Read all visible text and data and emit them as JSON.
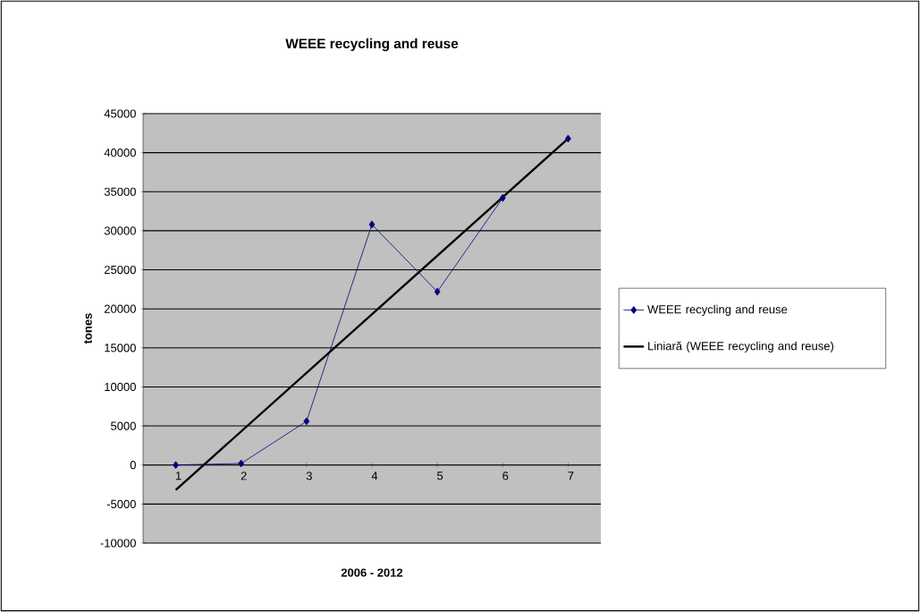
{
  "chart_data": {
    "type": "line",
    "title": "WEEE recycling and reuse",
    "xlabel": "2006 - 2012",
    "ylabel": "tones",
    "x": [
      1,
      2,
      3,
      4,
      5,
      6,
      7
    ],
    "series": [
      {
        "name": "WEEE recycling and reuse",
        "color": "#000080",
        "marker": "diamond",
        "values": [
          0,
          200,
          5600,
          30800,
          22200,
          34200,
          41800
        ]
      },
      {
        "name": "Liniară (WEEE recycling and reuse)",
        "color": "#000000",
        "marker": "none",
        "x": [
          1,
          7
        ],
        "values": [
          -3200,
          41800
        ]
      }
    ],
    "xlim": [
      0.5,
      7.5
    ],
    "xticks": [
      1,
      2,
      3,
      4,
      5,
      6,
      7
    ],
    "ylim": [
      -10000,
      45000
    ],
    "yticks": [
      -10000,
      -5000,
      0,
      5000,
      10000,
      15000,
      20000,
      25000,
      30000,
      35000,
      40000,
      45000
    ],
    "grid": "y",
    "legend": "right",
    "line_style": "solid"
  }
}
